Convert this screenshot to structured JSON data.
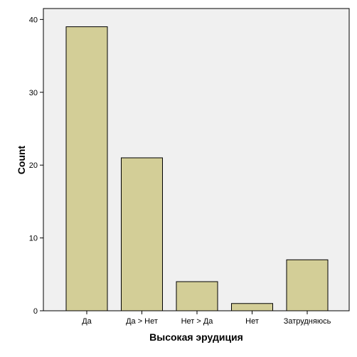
{
  "chart_data": {
    "type": "bar",
    "categories": [
      "Да",
      "Да > Нет",
      "Нет > Да",
      "Нет",
      "Затрудняюсь"
    ],
    "values": [
      39,
      21,
      4,
      1,
      7
    ],
    "xlabel": "Высокая эрудиция",
    "ylabel": "Count",
    "ylim": [
      0,
      41.5
    ],
    "yticks": [
      0,
      10,
      20,
      30,
      40
    ],
    "grid": false,
    "legend": "none",
    "colors": {
      "plot_background": "#f0f0f0",
      "bar_fill": "#d3ce97",
      "bar_stroke": "#000000",
      "axis": "#000000"
    }
  }
}
